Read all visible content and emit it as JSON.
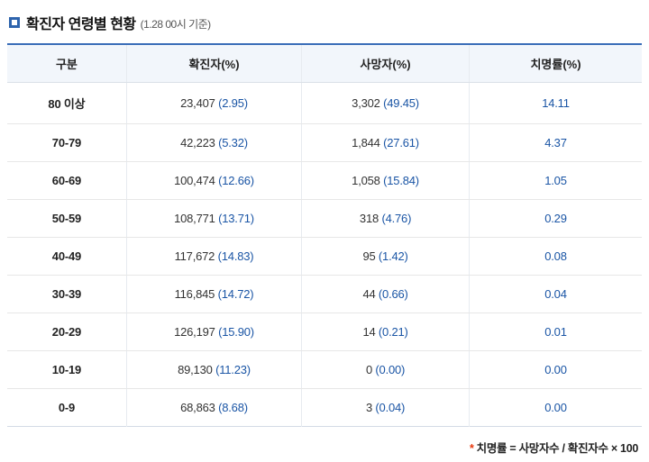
{
  "page": {
    "title": "확진자 연령별 현황",
    "title_suffix": "(1.28 00시 기준)",
    "footnote_star": "*",
    "footnote_text": "치명률 = 사망자수 / 확진자수 × 100"
  },
  "colors": {
    "accent_blue": "#2e64ad",
    "value_blue": "#1a55a5",
    "asterisk_red": "#e8380d",
    "header_bg": "#f2f6fb"
  },
  "chart_data": {
    "type": "table",
    "title": "확진자 연령별 현황 (1.28 00시 기준)",
    "columns": [
      "구분",
      "확진자(%)",
      "사망자(%)",
      "치명률(%)"
    ],
    "rows": [
      {
        "group": "80 이상",
        "confirmed": "23,407",
        "confirmed_pct": "(2.95)",
        "deaths": "3,302",
        "deaths_pct": "(49.45)",
        "fatality": "14.11"
      },
      {
        "group": "70-79",
        "confirmed": "42,223",
        "confirmed_pct": "(5.32)",
        "deaths": "1,844",
        "deaths_pct": "(27.61)",
        "fatality": "4.37"
      },
      {
        "group": "60-69",
        "confirmed": "100,474",
        "confirmed_pct": "(12.66)",
        "deaths": "1,058",
        "deaths_pct": "(15.84)",
        "fatality": "1.05"
      },
      {
        "group": "50-59",
        "confirmed": "108,771",
        "confirmed_pct": "(13.71)",
        "deaths": "318",
        "deaths_pct": "(4.76)",
        "fatality": "0.29"
      },
      {
        "group": "40-49",
        "confirmed": "117,672",
        "confirmed_pct": "(14.83)",
        "deaths": "95",
        "deaths_pct": "(1.42)",
        "fatality": "0.08"
      },
      {
        "group": "30-39",
        "confirmed": "116,845",
        "confirmed_pct": "(14.72)",
        "deaths": "44",
        "deaths_pct": "(0.66)",
        "fatality": "0.04"
      },
      {
        "group": "20-29",
        "confirmed": "126,197",
        "confirmed_pct": "(15.90)",
        "deaths": "14",
        "deaths_pct": "(0.21)",
        "fatality": "0.01"
      },
      {
        "group": "10-19",
        "confirmed": "89,130",
        "confirmed_pct": "(11.23)",
        "deaths": "0",
        "deaths_pct": "(0.00)",
        "fatality": "0.00"
      },
      {
        "group": "0-9",
        "confirmed": "68,863",
        "confirmed_pct": "(8.68)",
        "deaths": "3",
        "deaths_pct": "(0.04)",
        "fatality": "0.00"
      }
    ]
  }
}
